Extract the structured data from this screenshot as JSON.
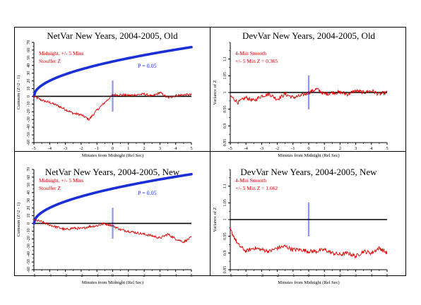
{
  "chart_data": [
    {
      "type": "line",
      "title": "NetVar New Years, 2004-2005, Old",
      "xlabel": "Minutes from Midnight (Rel Sec)",
      "ylabel": "Cumsum (Z^2 - 1)",
      "xlim": [
        -5,
        5
      ],
      "ylim": [
        -60,
        70
      ],
      "xticks": [
        "-5",
        "-4",
        "-3",
        "-2",
        "-1",
        "0",
        "1",
        "2",
        "3",
        "4",
        "5"
      ],
      "yticks": [
        "-60",
        "-50",
        "-40",
        "-30",
        "-20",
        "-10",
        "0",
        "10",
        "20",
        "30",
        "40",
        "50",
        "60",
        "70"
      ],
      "annotations": [
        "Midnight, +/- 5 Mins",
        "Stouffer Z",
        "P = 0.05"
      ],
      "colors": {
        "data": "#dd0000",
        "envelope": "#1a2fd6",
        "axis": "#000000",
        "annotation": "#cc0000",
        "p_label": "#1a2fd6"
      },
      "series": [
        {
          "role": "data",
          "x": [
            -5,
            -4.5,
            -4,
            -3.5,
            -3,
            -2.5,
            -2,
            -1.5,
            -1,
            -0.5,
            0,
            0.5,
            1,
            1.5,
            2,
            2.5,
            3,
            3.5,
            4,
            4.5,
            5
          ],
          "y": [
            0,
            -5,
            -8,
            -12,
            -17,
            -22,
            -24,
            -30,
            -18,
            -8,
            2,
            2,
            1,
            2,
            3,
            0,
            5,
            -2,
            1,
            2,
            2
          ]
        },
        {
          "role": "envelope",
          "label": "P = 0.05",
          "formula": "y = 20.19 * sqrt(x + 5)"
        }
      ],
      "marker": {
        "x": 0,
        "y_range": [
          -20,
          20
        ]
      }
    },
    {
      "type": "line",
      "title": "DevVar New Years, 2004-2005, Old",
      "xlabel": "Minutes from Midnight (Rel Sec)",
      "ylabel": "Variance of Z",
      "xlim": [
        -5,
        5
      ],
      "ylim": [
        0.85,
        1.15
      ],
      "xticks": [
        "-5",
        "-4",
        "-3",
        "-2",
        "-1",
        "0",
        "1",
        "2",
        "3",
        "4",
        "5"
      ],
      "yticks": [
        "0.85",
        "0.9",
        "0.95",
        "1",
        "1.05",
        "1.1"
      ],
      "annotations": [
        "4-Min Smooth",
        "+/- 5 Min Z = 0.365"
      ],
      "colors": {
        "data": "#dd0000",
        "axis": "#000000",
        "annotation": "#cc0000",
        "marker": "#1a2fd6"
      },
      "series": [
        {
          "role": "data",
          "x": [
            -5,
            -4.5,
            -4,
            -3.5,
            -3,
            -2.5,
            -2,
            -1.5,
            -1,
            -0.5,
            0,
            0.5,
            1,
            1.5,
            2,
            2.5,
            3,
            3.5,
            4,
            4.5,
            5
          ],
          "y": [
            0.99,
            0.97,
            0.985,
            0.975,
            0.99,
            0.995,
            0.98,
            0.995,
            0.985,
            0.99,
            1.0,
            1.01,
            0.995,
            1.0,
            1.0,
            0.995,
            1.005,
            1.0,
            1.005,
            0.995,
            1.0
          ]
        }
      ],
      "marker": {
        "x": 0,
        "y_range": [
          0.95,
          1.05
        ]
      }
    },
    {
      "type": "line",
      "title": "NetVar New Years, 2004-2005, New",
      "xlabel": "Minutes from Midnight (Rel Sec)",
      "ylabel": "Cumsum (Z^2 - 1)",
      "xlim": [
        -5,
        5
      ],
      "ylim": [
        -60,
        70
      ],
      "xticks": [
        "-5",
        "-4",
        "-3",
        "-2",
        "-1",
        "0",
        "1",
        "2",
        "3",
        "4",
        "5"
      ],
      "yticks": [
        "-60",
        "-50",
        "-40",
        "-30",
        "-20",
        "-10",
        "0",
        "10",
        "20",
        "30",
        "40",
        "50",
        "60",
        "70"
      ],
      "annotations": [
        "Midnight, +/- 5 Mins",
        "Stouffer Z",
        "P = 0.05"
      ],
      "colors": {
        "data": "#dd0000",
        "envelope": "#1a2fd6",
        "axis": "#000000",
        "annotation": "#cc0000",
        "p_label": "#1a2fd6"
      },
      "series": [
        {
          "role": "data",
          "x": [
            -5,
            -4.5,
            -4,
            -3.5,
            -3,
            -2.5,
            -2,
            -1.5,
            -1,
            -0.5,
            0,
            0.5,
            1,
            1.5,
            2,
            2.5,
            3,
            3.5,
            4,
            4.5,
            5
          ],
          "y": [
            5,
            2,
            -2,
            -5,
            -8,
            -6,
            -7,
            -4,
            -3,
            0,
            -3,
            -8,
            -10,
            -12,
            -14,
            -16,
            -19,
            -14,
            -20,
            -24,
            -18
          ]
        },
        {
          "role": "envelope",
          "label": "P = 0.05",
          "formula": "y = 20.19 * sqrt(x + 5)"
        }
      ],
      "marker": {
        "x": 0,
        "y_range": [
          -20,
          20
        ]
      }
    },
    {
      "type": "line",
      "title": "DevVar New Years, 2004-2005, New",
      "xlabel": "Minutes from Midnight (Rel Sec)",
      "ylabel": "Variance of Z",
      "xlim": [
        -5,
        5
      ],
      "ylim": [
        0.85,
        1.15
      ],
      "xticks": [
        "-5",
        "-4",
        "-3",
        "-2",
        "-1",
        "0",
        "1",
        "2",
        "3",
        "4",
        "5"
      ],
      "yticks": [
        "0.85",
        "0.9",
        "0.95",
        "1",
        "1.05",
        "1.1"
      ],
      "annotations": [
        "4-Min Smooth",
        "+/- 5 Min Z = 1.662"
      ],
      "colors": {
        "data": "#dd0000",
        "axis": "#000000",
        "annotation": "#cc0000",
        "marker": "#1a2fd6"
      },
      "series": [
        {
          "role": "data",
          "x": [
            -5,
            -4.5,
            -4,
            -3.5,
            -3,
            -2.5,
            -2,
            -1.5,
            -1,
            -0.5,
            0,
            0.5,
            1,
            1.5,
            2,
            2.5,
            3,
            3.5,
            4,
            4.5,
            5
          ],
          "y": [
            0.97,
            0.925,
            0.905,
            0.915,
            0.91,
            0.905,
            0.915,
            0.92,
            0.91,
            0.91,
            0.905,
            0.905,
            0.91,
            0.9,
            0.895,
            0.9,
            0.89,
            0.905,
            0.9,
            0.915,
            0.9
          ]
        }
      ],
      "marker": {
        "x": 0,
        "y_range": [
          0.95,
          1.05
        ]
      }
    }
  ]
}
